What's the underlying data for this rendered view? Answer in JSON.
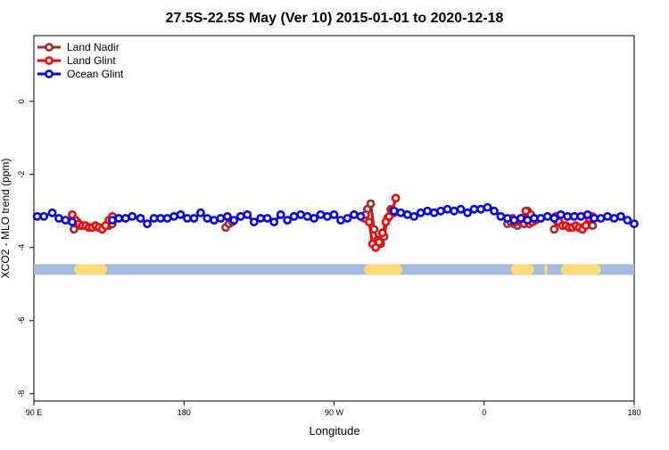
{
  "chart_data": {
    "type": "line",
    "title": "27.5S-22.5S May (Ver 10)   2015-01-01 to 2020-12-18",
    "xlabel": "Longitude",
    "ylabel": "XCO2 - MLO trend (ppm)",
    "xlim": [
      90,
      450
    ],
    "ylim": [
      -8.2,
      1.8
    ],
    "x_ticks": [
      {
        "value": 90,
        "label": "90 E"
      },
      {
        "value": 180,
        "label": "180"
      },
      {
        "value": 270,
        "label": "90 W"
      },
      {
        "value": 360,
        "label": "0"
      },
      {
        "value": 450,
        "label": "180"
      }
    ],
    "y_ticks": [
      {
        "value": 0,
        "label": "0"
      },
      {
        "value": -2,
        "label": "-2"
      },
      {
        "value": -4,
        "label": "-4"
      },
      {
        "value": -6,
        "label": "-6"
      },
      {
        "value": -8,
        "label": "-8"
      }
    ],
    "legend_position": "top-left",
    "series": [
      {
        "name": "Land Nadir",
        "color": "#a52a2a",
        "segments": [
          [
            [
              114,
              -3.5
            ],
            [
              116,
              -3.3
            ],
            [
              118,
              -3.4
            ]
          ],
          [
            [
              135,
              -3.4
            ],
            [
              137,
              -3.35
            ],
            [
              139,
              -3.2
            ]
          ],
          [
            [
              205,
              -3.45
            ],
            [
              207,
              -3.35
            ],
            [
              209,
              -3.3
            ]
          ],
          [
            [
              288,
              -3.2
            ],
            [
              290,
              -2.95
            ],
            [
              292,
              -2.8
            ],
            [
              294,
              -3.5
            ],
            [
              296,
              -3.8
            ],
            [
              298,
              -3.9
            ],
            [
              300,
              -3.7
            ],
            [
              302,
              -3.2
            ],
            [
              304,
              -2.95
            ],
            [
              306,
              -3.05
            ]
          ],
          [
            [
              374,
              -3.35
            ],
            [
              376,
              -3.3
            ],
            [
              378,
              -3.35
            ],
            [
              380,
              -3.4
            ],
            [
              382,
              -3.3
            ],
            [
              384,
              -3.35
            ],
            [
              386,
              -3.0
            ],
            [
              388,
              -3.1
            ],
            [
              390,
              -3.2
            ]
          ],
          [
            [
              402,
              -3.5
            ],
            [
              404,
              -3.3
            ]
          ],
          [
            [
              423,
              -3.3
            ],
            [
              425,
              -3.4
            ]
          ]
        ]
      },
      {
        "name": "Land Glint",
        "color": "#ff0000",
        "segments": [
          [
            [
              113,
              -3.1
            ],
            [
              115,
              -3.25
            ],
            [
              117,
              -3.35
            ],
            [
              119,
              -3.4
            ],
            [
              121,
              -3.4
            ],
            [
              123,
              -3.45
            ],
            [
              125,
              -3.45
            ],
            [
              127,
              -3.4
            ],
            [
              129,
              -3.45
            ],
            [
              131,
              -3.5
            ],
            [
              133,
              -3.4
            ],
            [
              135,
              -3.25
            ],
            [
              137,
              -3.15
            ]
          ],
          [
            [
              289,
              -3.1
            ],
            [
              291,
              -3.3
            ],
            [
              293,
              -3.9
            ],
            [
              295,
              -4.0
            ],
            [
              297,
              -3.85
            ],
            [
              299,
              -3.6
            ],
            [
              301,
              -3.3
            ],
            [
              303,
              -3.15
            ],
            [
              305,
              -3.0
            ],
            [
              307,
              -2.65
            ]
          ],
          [
            [
              377,
              -3.2
            ],
            [
              379,
              -3.3
            ],
            [
              381,
              -3.25
            ],
            [
              383,
              -3.2
            ],
            [
              385,
              -3.0
            ],
            [
              387,
              -3.35
            ],
            [
              389,
              -3.3
            ],
            [
              391,
              -3.25
            ]
          ],
          [
            [
              403,
              -3.15
            ],
            [
              405,
              -3.3
            ],
            [
              407,
              -3.4
            ],
            [
              409,
              -3.4
            ],
            [
              411,
              -3.45
            ],
            [
              413,
              -3.45
            ],
            [
              415,
              -3.4
            ],
            [
              417,
              -3.45
            ],
            [
              419,
              -3.5
            ],
            [
              421,
              -3.4
            ],
            [
              423,
              -3.2
            ],
            [
              425,
              -3.15
            ]
          ]
        ]
      },
      {
        "name": "Ocean Glint",
        "color": "#0000ff",
        "segments": [
          [
            [
              92,
              -3.15
            ],
            [
              96,
              -3.15
            ],
            [
              101,
              -3.05
            ],
            [
              105,
              -3.2
            ],
            [
              109,
              -3.25
            ],
            [
              113,
              -3.3
            ]
          ],
          [
            [
              137,
              -3.25
            ],
            [
              141,
              -3.2
            ],
            [
              145,
              -3.2
            ],
            [
              149,
              -3.15
            ],
            [
              154,
              -3.2
            ],
            [
              158,
              -3.35
            ],
            [
              162,
              -3.2
            ],
            [
              166,
              -3.2
            ],
            [
              170,
              -3.2
            ],
            [
              174,
              -3.15
            ],
            [
              178,
              -3.1
            ],
            [
              182,
              -3.2
            ],
            [
              186,
              -3.2
            ],
            [
              190,
              -3.05
            ],
            [
              194,
              -3.2
            ],
            [
              198,
              -3.25
            ],
            [
              202,
              -3.2
            ],
            [
              206,
              -3.15
            ],
            [
              210,
              -3.25
            ],
            [
              214,
              -3.15
            ],
            [
              218,
              -3.1
            ],
            [
              222,
              -3.3
            ],
            [
              226,
              -3.2
            ],
            [
              230,
              -3.2
            ],
            [
              234,
              -3.3
            ],
            [
              238,
              -3.1
            ],
            [
              242,
              -3.25
            ],
            [
              246,
              -3.15
            ],
            [
              250,
              -3.1
            ],
            [
              254,
              -3.15
            ],
            [
              258,
              -3.2
            ],
            [
              262,
              -3.1
            ],
            [
              266,
              -3.15
            ],
            [
              270,
              -3.1
            ],
            [
              274,
              -3.25
            ],
            [
              278,
              -3.2
            ],
            [
              282,
              -3.1
            ],
            [
              286,
              -3.15
            ]
          ],
          [
            [
              306,
              -3.0
            ],
            [
              310,
              -3.05
            ],
            [
              314,
              -3.1
            ],
            [
              318,
              -3.15
            ],
            [
              322,
              -3.05
            ],
            [
              326,
              -3.0
            ],
            [
              330,
              -3.05
            ],
            [
              334,
              -3.0
            ],
            [
              338,
              -2.95
            ],
            [
              342,
              -3.0
            ],
            [
              346,
              -2.95
            ],
            [
              350,
              -3.05
            ],
            [
              354,
              -2.95
            ],
            [
              358,
              -2.95
            ],
            [
              362,
              -2.9
            ],
            [
              366,
              -3.0
            ],
            [
              370,
              -3.15
            ],
            [
              374,
              -3.2
            ],
            [
              378,
              -3.25
            ],
            [
              382,
              -3.2
            ],
            [
              386,
              -3.25
            ],
            [
              390,
              -3.2
            ],
            [
              394,
              -3.2
            ],
            [
              398,
              -3.15
            ],
            [
              402,
              -3.2
            ],
            [
              406,
              -3.1
            ],
            [
              410,
              -3.15
            ],
            [
              414,
              -3.15
            ],
            [
              418,
              -3.15
            ],
            [
              422,
              -3.1
            ],
            [
              426,
              -3.2
            ],
            [
              430,
              -3.2
            ],
            [
              434,
              -3.15
            ],
            [
              438,
              -3.2
            ],
            [
              442,
              -3.15
            ],
            [
              446,
              -3.25
            ],
            [
              450,
              -3.35
            ]
          ]
        ]
      }
    ],
    "land_strip": {
      "y": -4.6,
      "ocean_color": "#a4bbdd",
      "land_color": "#fddc77",
      "land_ranges": [
        [
          114,
          134
        ],
        [
          288,
          311
        ],
        [
          376,
          390
        ],
        [
          396,
          398
        ],
        [
          406,
          430
        ]
      ]
    }
  }
}
